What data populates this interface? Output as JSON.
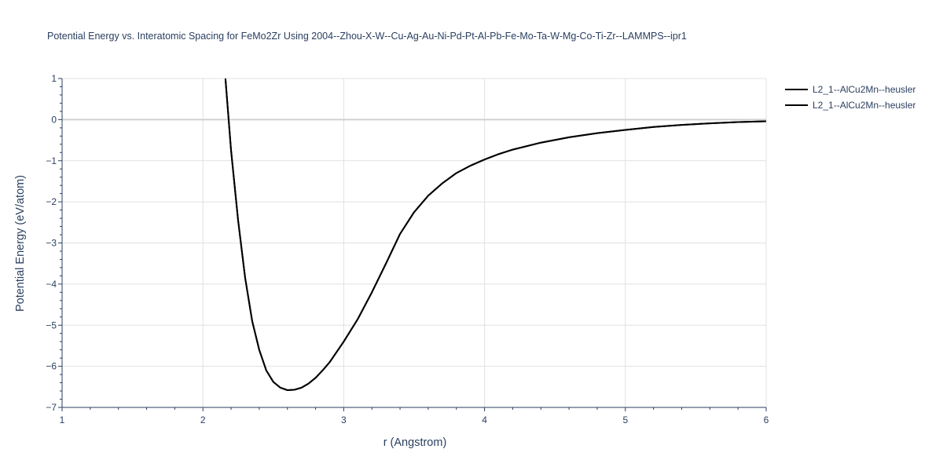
{
  "chart_data": {
    "type": "line",
    "title": "Potential Energy vs. Interatomic Spacing for FeMo2Zr Using 2004--Zhou-X-W--Cu-Ag-Au-Ni-Pd-Pt-Al-Pb-Fe-Mo-Ta-W-Mg-Co-Ti-Zr--LAMMPS--ipr1",
    "xlabel": "r (Angstrom)",
    "ylabel": "Potential Energy (eV/atom)",
    "xlim": [
      1,
      6
    ],
    "ylim": [
      -7,
      1
    ],
    "x_ticks": [
      1,
      2,
      3,
      4,
      5,
      6
    ],
    "y_ticks": [
      1,
      0,
      -1,
      -2,
      -3,
      -4,
      -5,
      -6,
      -7
    ],
    "x_tick_labels": [
      "1",
      "2",
      "3",
      "4",
      "5",
      "6"
    ],
    "y_tick_labels": [
      "1",
      "0",
      "−1",
      "−2",
      "−3",
      "−4",
      "−5",
      "−6",
      "−7"
    ],
    "grid": true,
    "legend_position": "top-right",
    "color": "#000000",
    "series": [
      {
        "name": "L2_1--AlCu2Mn--heusler",
        "x": [
          2.16,
          2.2,
          2.25,
          2.3,
          2.35,
          2.4,
          2.45,
          2.5,
          2.55,
          2.6,
          2.65,
          2.7,
          2.75,
          2.8,
          2.85,
          2.9,
          2.95,
          3.0,
          3.1,
          3.2,
          3.3,
          3.4,
          3.5,
          3.6,
          3.7,
          3.8,
          3.9,
          4.0,
          4.1,
          4.2,
          4.4,
          4.6,
          4.8,
          5.0,
          5.2,
          5.4,
          5.6,
          5.8,
          6.0
        ],
        "y": [
          1.0,
          -0.75,
          -2.45,
          -3.85,
          -4.9,
          -5.6,
          -6.1,
          -6.38,
          -6.52,
          -6.58,
          -6.57,
          -6.52,
          -6.42,
          -6.28,
          -6.1,
          -5.9,
          -5.65,
          -5.4,
          -4.85,
          -4.2,
          -3.5,
          -2.78,
          -2.25,
          -1.85,
          -1.55,
          -1.3,
          -1.12,
          -0.97,
          -0.84,
          -0.73,
          -0.56,
          -0.43,
          -0.33,
          -0.25,
          -0.18,
          -0.13,
          -0.09,
          -0.06,
          -0.04
        ]
      },
      {
        "name": "L2_1--AlCu2Mn--heusler",
        "x": [
          2.16,
          2.2,
          2.25,
          2.3,
          2.35,
          2.4,
          2.45,
          2.5,
          2.55,
          2.6,
          2.65,
          2.7,
          2.75,
          2.8,
          2.85,
          2.9,
          2.95,
          3.0,
          3.1,
          3.2,
          3.3,
          3.4,
          3.5,
          3.6,
          3.7,
          3.8,
          3.9,
          4.0,
          4.1,
          4.2,
          4.4,
          4.6,
          4.8,
          5.0,
          5.2,
          5.4,
          5.6,
          5.8,
          6.0
        ],
        "y": [
          1.0,
          -0.75,
          -2.45,
          -3.85,
          -4.9,
          -5.6,
          -6.1,
          -6.38,
          -6.52,
          -6.58,
          -6.57,
          -6.52,
          -6.42,
          -6.28,
          -6.1,
          -5.9,
          -5.65,
          -5.4,
          -4.85,
          -4.2,
          -3.5,
          -2.78,
          -2.25,
          -1.85,
          -1.55,
          -1.3,
          -1.12,
          -0.97,
          -0.84,
          -0.73,
          -0.56,
          -0.43,
          -0.33,
          -0.25,
          -0.18,
          -0.13,
          -0.09,
          -0.06,
          -0.04
        ]
      }
    ]
  }
}
